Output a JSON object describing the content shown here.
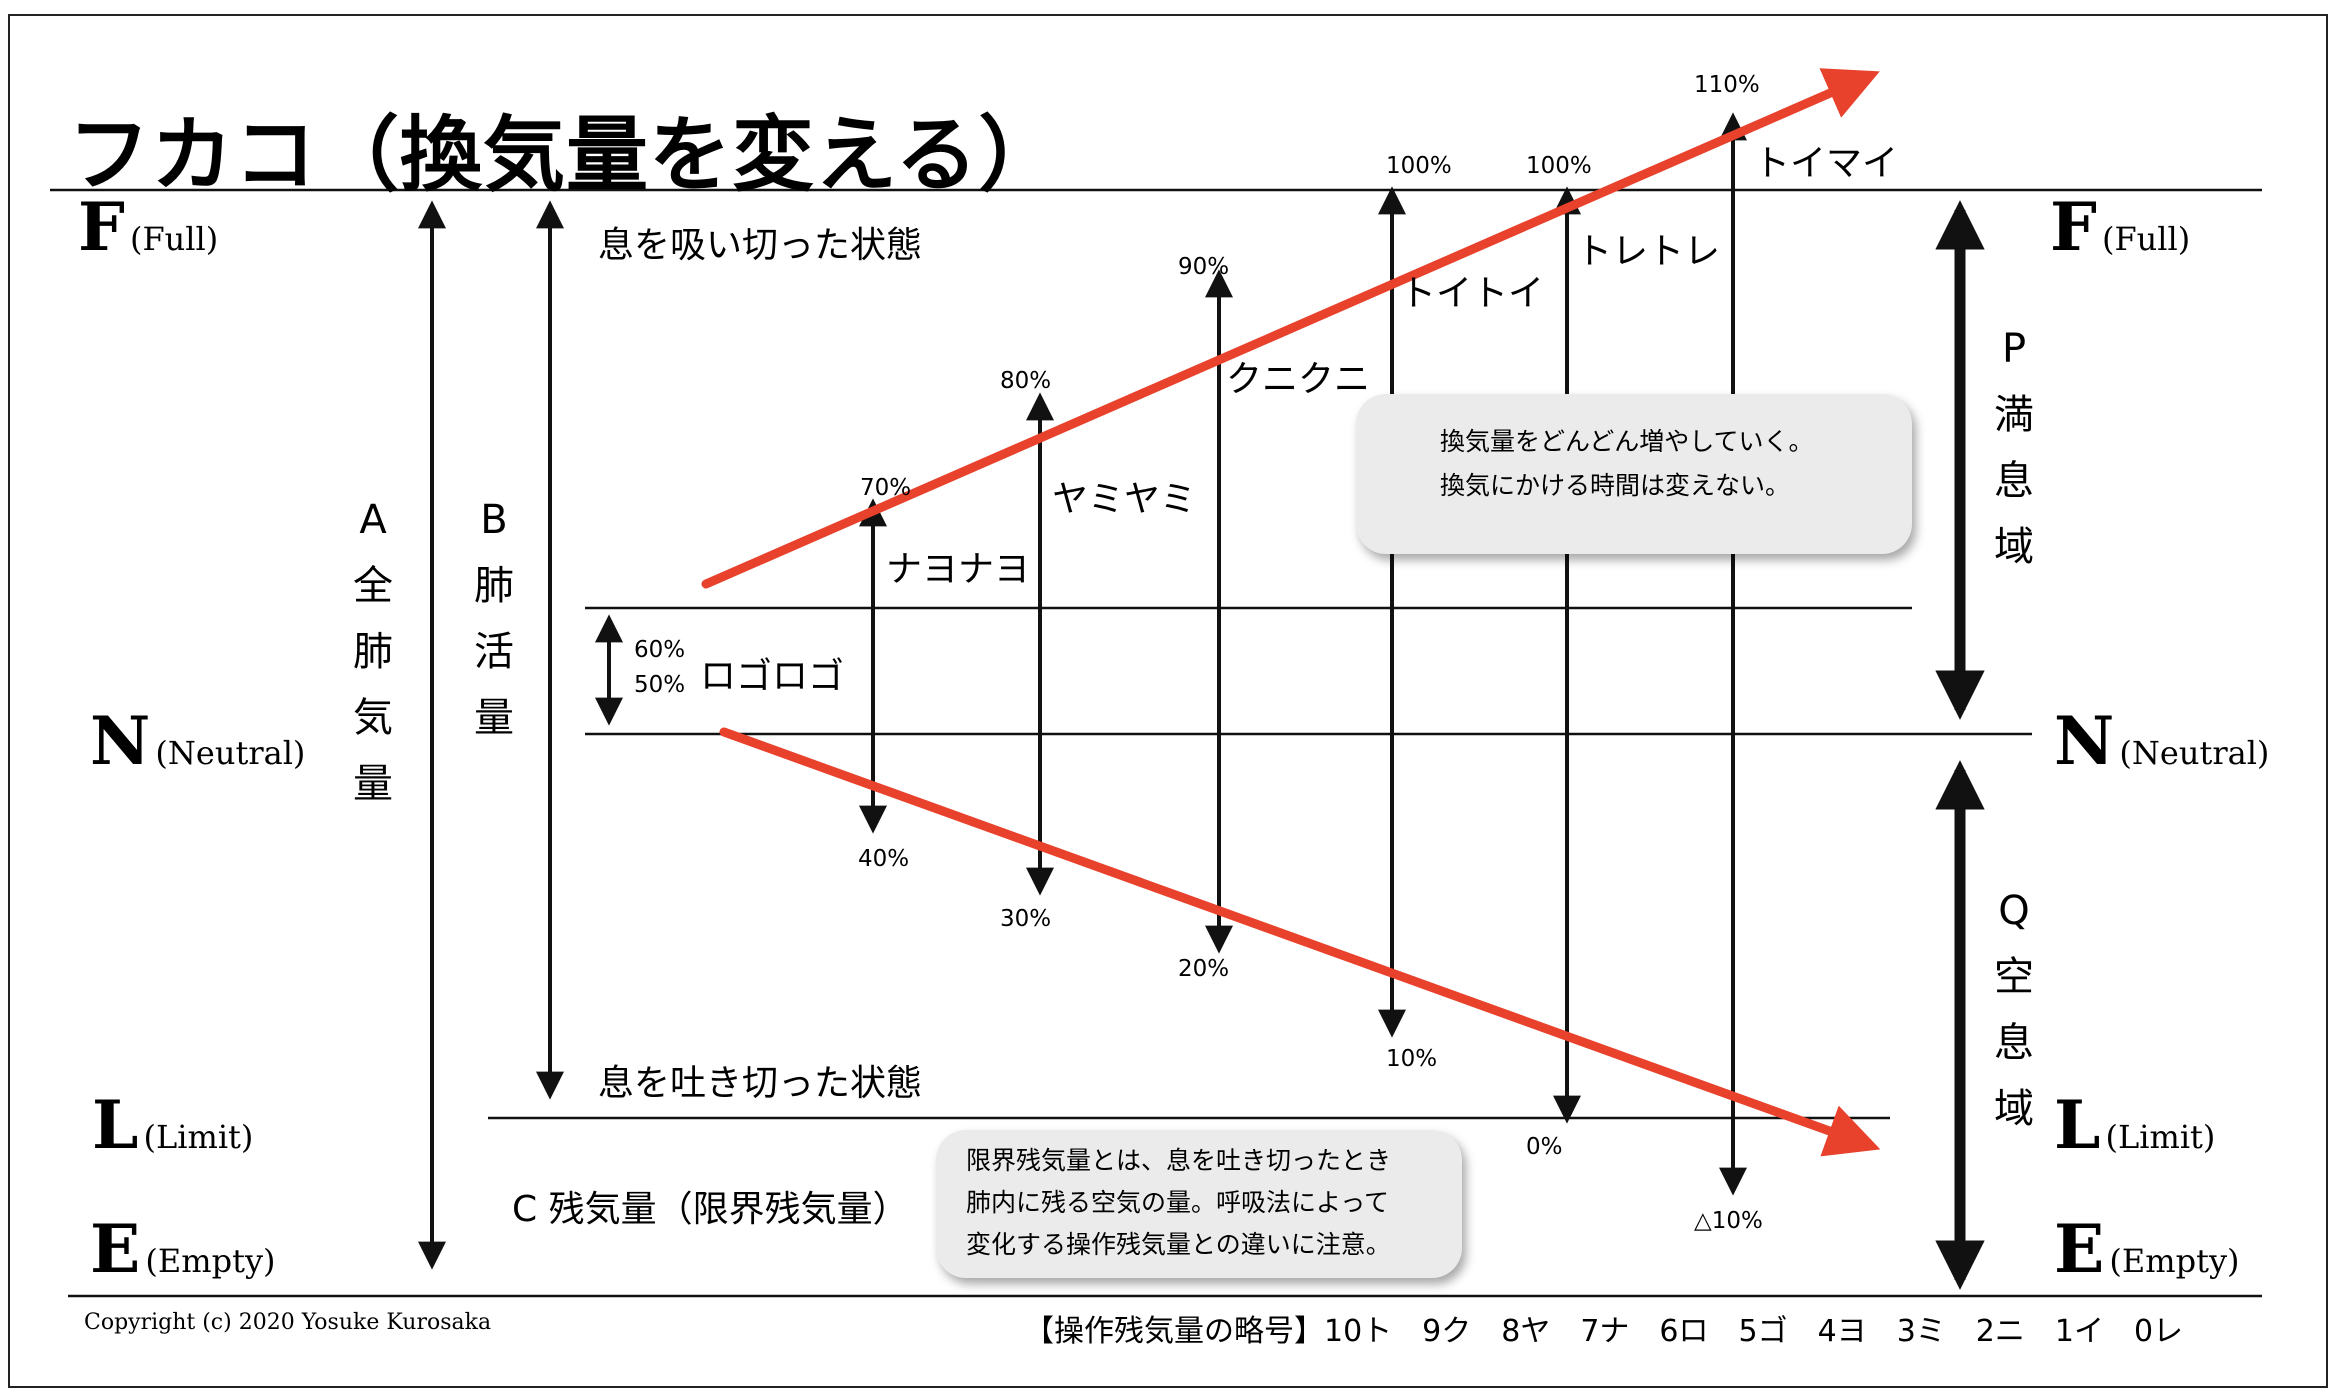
{
  "title": "フカコ（換気量を変える）",
  "zones": {
    "F": {
      "letter": "F",
      "sub": "(Full)"
    },
    "N": {
      "letter": "N",
      "sub": "(Neutral)"
    },
    "L": {
      "letter": "L",
      "sub": "(Limit)"
    },
    "E": {
      "letter": "E",
      "sub": "(Empty)"
    }
  },
  "vertical_labels": {
    "A": [
      "A",
      "全",
      "肺",
      "気",
      "量"
    ],
    "B": [
      "B",
      "肺",
      "活",
      "量"
    ],
    "P": [
      "P",
      "満",
      "息",
      "域"
    ],
    "Q": [
      "Q",
      "空",
      "息",
      "域"
    ]
  },
  "states": {
    "inhale": "息を吸い切った状態",
    "exhale": "息を吐き切った状態",
    "residual": "C 残気量（限界残気量）"
  },
  "levels": [
    {
      "name": "ロゴロゴ",
      "top": "60%",
      "bottom": "50%"
    },
    {
      "name": "ナヨナヨ",
      "top": "70%",
      "bottom": "40%"
    },
    {
      "name": "ヤミヤミ",
      "top": "80%",
      "bottom": "30%"
    },
    {
      "name": "クニクニ",
      "top": "90%",
      "bottom": "20%"
    },
    {
      "name": "トイトイ",
      "top": "100%",
      "bottom": "10%"
    },
    {
      "name": "トレトレ",
      "top": "100%",
      "bottom": "0%"
    },
    {
      "name": "トイマイ",
      "top": "110%",
      "bottom": "△10%"
    }
  ],
  "notes": {
    "top": [
      "換気量をどんどん増やしていく。",
      "換気にかける時間は変えない。"
    ],
    "bottom": [
      "限界残気量とは、息を吐き切ったとき",
      "肺内に残る空気の量。呼吸法によって",
      "変化する操作残気量との違いに注意。"
    ]
  },
  "copyright": "Copyright (c) 2020 Yosuke Kurosaka",
  "legend": "【操作残気量の略号】10ト　9ク　8ヤ　7ナ　6ロ　5ゴ　4ヨ　3ミ　2ニ　1イ　0レ",
  "colors": {
    "accent": "#e8412c",
    "line": "#111111"
  }
}
